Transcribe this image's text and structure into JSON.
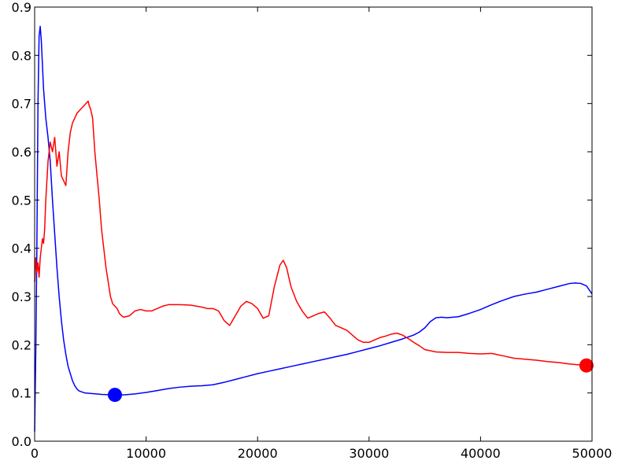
{
  "chart_data": {
    "type": "line",
    "title": "",
    "xlabel": "",
    "ylabel": "",
    "xlim": [
      0,
      50000
    ],
    "ylim": [
      0,
      0.9
    ],
    "grid": false,
    "x_ticks": [
      0,
      10000,
      20000,
      30000,
      40000,
      50000
    ],
    "x_tick_labels": [
      "0",
      "10000",
      "20000",
      "30000",
      "40000",
      "50000"
    ],
    "y_ticks": [
      0,
      0.1,
      0.2,
      0.3,
      0.4,
      0.5,
      0.6,
      0.7,
      0.8,
      0.9
    ],
    "y_tick_labels": [
      "0.0",
      "0.1",
      "0.2",
      "0.3",
      "0.4",
      "0.5",
      "0.6",
      "0.7",
      "0.8",
      "0.9"
    ],
    "series": [
      {
        "color": "#0000ff",
        "marker": {
          "x": 7200,
          "y": 0.096
        },
        "points": [
          [
            0,
            0.02
          ],
          [
            100,
            0.18
          ],
          [
            200,
            0.4
          ],
          [
            300,
            0.7
          ],
          [
            400,
            0.84
          ],
          [
            500,
            0.86
          ],
          [
            600,
            0.83
          ],
          [
            700,
            0.78
          ],
          [
            800,
            0.73
          ],
          [
            900,
            0.7
          ],
          [
            1000,
            0.67
          ],
          [
            1200,
            0.63
          ],
          [
            1400,
            0.58
          ],
          [
            1600,
            0.5
          ],
          [
            1800,
            0.43
          ],
          [
            2000,
            0.36
          ],
          [
            2200,
            0.3
          ],
          [
            2400,
            0.25
          ],
          [
            2600,
            0.21
          ],
          [
            2800,
            0.18
          ],
          [
            3000,
            0.155
          ],
          [
            3200,
            0.14
          ],
          [
            3400,
            0.125
          ],
          [
            3600,
            0.115
          ],
          [
            3800,
            0.108
          ],
          [
            4000,
            0.104
          ],
          [
            4500,
            0.1
          ],
          [
            5000,
            0.099
          ],
          [
            6000,
            0.097
          ],
          [
            7000,
            0.096
          ],
          [
            8000,
            0.096
          ],
          [
            9000,
            0.098
          ],
          [
            10000,
            0.101
          ],
          [
            11000,
            0.105
          ],
          [
            12000,
            0.109
          ],
          [
            13000,
            0.112
          ],
          [
            14000,
            0.114
          ],
          [
            15000,
            0.115
          ],
          [
            16000,
            0.117
          ],
          [
            17000,
            0.122
          ],
          [
            18000,
            0.128
          ],
          [
            19000,
            0.134
          ],
          [
            20000,
            0.14
          ],
          [
            21000,
            0.145
          ],
          [
            22000,
            0.15
          ],
          [
            23000,
            0.155
          ],
          [
            24000,
            0.16
          ],
          [
            25000,
            0.165
          ],
          [
            26000,
            0.17
          ],
          [
            27000,
            0.175
          ],
          [
            28000,
            0.18
          ],
          [
            29000,
            0.186
          ],
          [
            30000,
            0.192
          ],
          [
            31000,
            0.198
          ],
          [
            32000,
            0.205
          ],
          [
            33000,
            0.212
          ],
          [
            34000,
            0.22
          ],
          [
            34500,
            0.226
          ],
          [
            35000,
            0.235
          ],
          [
            35500,
            0.248
          ],
          [
            36000,
            0.256
          ],
          [
            36500,
            0.257
          ],
          [
            37000,
            0.256
          ],
          [
            38000,
            0.258
          ],
          [
            39000,
            0.265
          ],
          [
            40000,
            0.273
          ],
          [
            41000,
            0.283
          ],
          [
            42000,
            0.292
          ],
          [
            43000,
            0.3
          ],
          [
            44000,
            0.305
          ],
          [
            45000,
            0.309
          ],
          [
            46000,
            0.315
          ],
          [
            47000,
            0.321
          ],
          [
            48000,
            0.327
          ],
          [
            48500,
            0.328
          ],
          [
            49000,
            0.327
          ],
          [
            49500,
            0.322
          ],
          [
            49800,
            0.312
          ],
          [
            50000,
            0.305
          ]
        ]
      },
      {
        "color": "#ff0000",
        "marker": {
          "x": 49500,
          "y": 0.157
        },
        "points": [
          [
            0,
            0.33
          ],
          [
            100,
            0.38
          ],
          [
            200,
            0.35
          ],
          [
            300,
            0.37
          ],
          [
            400,
            0.34
          ],
          [
            500,
            0.38
          ],
          [
            600,
            0.4
          ],
          [
            700,
            0.42
          ],
          [
            800,
            0.41
          ],
          [
            900,
            0.44
          ],
          [
            1000,
            0.5
          ],
          [
            1200,
            0.58
          ],
          [
            1400,
            0.62
          ],
          [
            1600,
            0.6
          ],
          [
            1800,
            0.63
          ],
          [
            2000,
            0.57
          ],
          [
            2200,
            0.6
          ],
          [
            2400,
            0.55
          ],
          [
            2600,
            0.54
          ],
          [
            2800,
            0.53
          ],
          [
            3000,
            0.6
          ],
          [
            3200,
            0.64
          ],
          [
            3400,
            0.66
          ],
          [
            3600,
            0.67
          ],
          [
            3800,
            0.68
          ],
          [
            4000,
            0.685
          ],
          [
            4200,
            0.69
          ],
          [
            4400,
            0.695
          ],
          [
            4600,
            0.7
          ],
          [
            4800,
            0.705
          ],
          [
            4900,
            0.695
          ],
          [
            5000,
            0.69
          ],
          [
            5200,
            0.67
          ],
          [
            5400,
            0.6
          ],
          [
            5600,
            0.55
          ],
          [
            5800,
            0.5
          ],
          [
            6000,
            0.44
          ],
          [
            6200,
            0.4
          ],
          [
            6400,
            0.36
          ],
          [
            6600,
            0.33
          ],
          [
            6800,
            0.3
          ],
          [
            7000,
            0.285
          ],
          [
            7200,
            0.28
          ],
          [
            7400,
            0.275
          ],
          [
            7600,
            0.265
          ],
          [
            7800,
            0.26
          ],
          [
            8000,
            0.257
          ],
          [
            8500,
            0.26
          ],
          [
            9000,
            0.27
          ],
          [
            9500,
            0.273
          ],
          [
            10000,
            0.27
          ],
          [
            10500,
            0.27
          ],
          [
            11000,
            0.275
          ],
          [
            11500,
            0.28
          ],
          [
            12000,
            0.283
          ],
          [
            13000,
            0.283
          ],
          [
            14000,
            0.282
          ],
          [
            15000,
            0.278
          ],
          [
            15500,
            0.275
          ],
          [
            16000,
            0.275
          ],
          [
            16500,
            0.27
          ],
          [
            17000,
            0.25
          ],
          [
            17500,
            0.24
          ],
          [
            18000,
            0.26
          ],
          [
            18500,
            0.28
          ],
          [
            19000,
            0.29
          ],
          [
            19500,
            0.285
          ],
          [
            20000,
            0.275
          ],
          [
            20500,
            0.255
          ],
          [
            21000,
            0.26
          ],
          [
            21500,
            0.32
          ],
          [
            22000,
            0.365
          ],
          [
            22300,
            0.375
          ],
          [
            22600,
            0.36
          ],
          [
            23000,
            0.32
          ],
          [
            23500,
            0.29
          ],
          [
            24000,
            0.27
          ],
          [
            24500,
            0.255
          ],
          [
            25000,
            0.26
          ],
          [
            25500,
            0.265
          ],
          [
            26000,
            0.268
          ],
          [
            26500,
            0.255
          ],
          [
            27000,
            0.24
          ],
          [
            27500,
            0.235
          ],
          [
            28000,
            0.23
          ],
          [
            28500,
            0.22
          ],
          [
            29000,
            0.21
          ],
          [
            29500,
            0.205
          ],
          [
            30000,
            0.205
          ],
          [
            30500,
            0.21
          ],
          [
            31000,
            0.215
          ],
          [
            31500,
            0.218
          ],
          [
            32000,
            0.222
          ],
          [
            32500,
            0.224
          ],
          [
            33000,
            0.22
          ],
          [
            33500,
            0.213
          ],
          [
            34000,
            0.205
          ],
          [
            34500,
            0.198
          ],
          [
            35000,
            0.19
          ],
          [
            36000,
            0.185
          ],
          [
            37000,
            0.184
          ],
          [
            38000,
            0.184
          ],
          [
            39000,
            0.182
          ],
          [
            40000,
            0.181
          ],
          [
            41000,
            0.182
          ],
          [
            42000,
            0.177
          ],
          [
            43000,
            0.172
          ],
          [
            44000,
            0.17
          ],
          [
            45000,
            0.168
          ],
          [
            46000,
            0.165
          ],
          [
            47000,
            0.163
          ],
          [
            48000,
            0.16
          ],
          [
            49000,
            0.158
          ],
          [
            49500,
            0.157
          ]
        ]
      }
    ]
  }
}
